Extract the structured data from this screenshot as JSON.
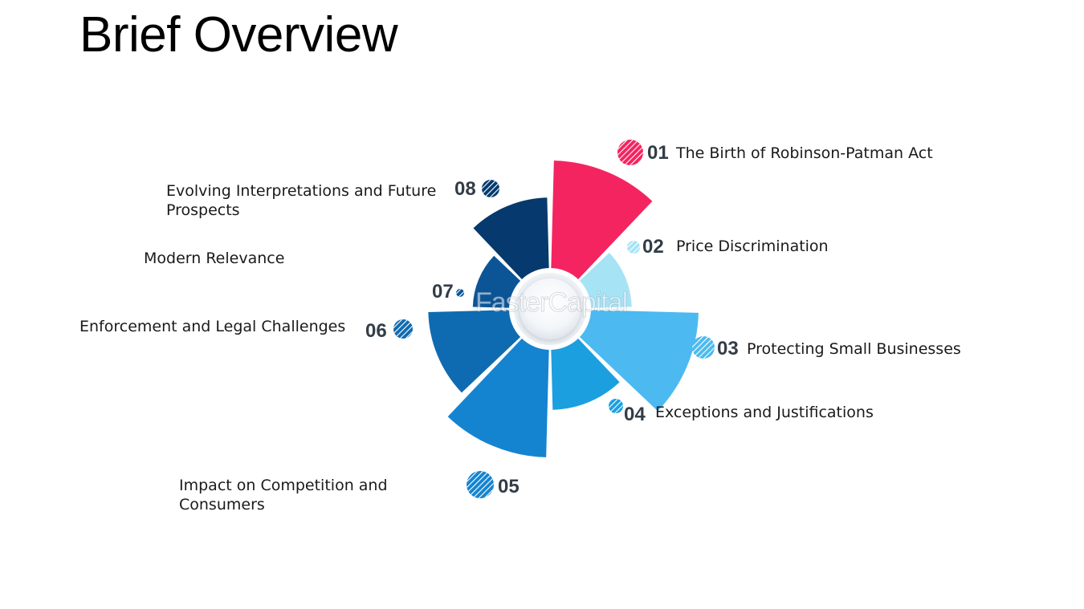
{
  "slide": {
    "title": "Brief Overview"
  },
  "watermark": {
    "text": "FasterCapital"
  },
  "colors": {
    "s1": "#f42460",
    "s2": "#a6e3f5",
    "s3": "#4cbaf0",
    "s4": "#1c9fdf",
    "s5": "#1584d0",
    "s6": "#0f6bb1",
    "s7": "#0b5597",
    "s8": "#063a6e"
  },
  "items": [
    {
      "number": "01",
      "label": "The Birth of Robinson-Patman Act",
      "radius": 1.0,
      "color_key": "s1"
    },
    {
      "number": "02",
      "label": "Price Discrimination",
      "radius": 0.55,
      "color_key": "s2"
    },
    {
      "number": "03",
      "label": "Protecting Small Businesses",
      "radius": 1.0,
      "color_key": "s3"
    },
    {
      "number": "04",
      "label": "Exceptions and Justifications",
      "radius": 0.68,
      "color_key": "s4"
    },
    {
      "number": "05",
      "label": "Impact on Competition and Consumers",
      "radius": 1.0,
      "color_key": "s5"
    },
    {
      "number": "06",
      "label": "Enforcement and Legal Challenges",
      "radius": 0.82,
      "color_key": "s6"
    },
    {
      "number": "07",
      "label": "Modern Relevance",
      "radius": 0.52,
      "color_key": "s7"
    },
    {
      "number": "08",
      "label": "Evolving Interpretations and Future Prospects",
      "radius": 0.75,
      "color_key": "s8"
    }
  ]
}
